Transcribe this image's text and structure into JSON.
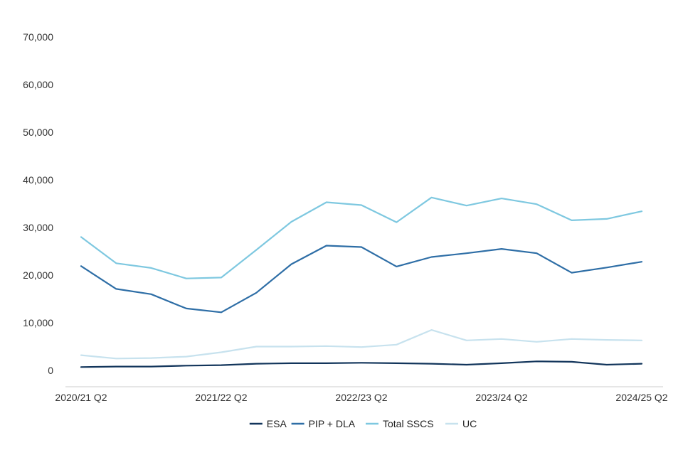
{
  "chart_data": {
    "type": "line",
    "title": "",
    "xlabel": "",
    "ylabel": "",
    "ylim": [
      0,
      70000
    ],
    "yticks": [
      0,
      10000,
      20000,
      30000,
      40000,
      50000,
      60000,
      70000
    ],
    "ytick_labels": [
      "0",
      "10,000",
      "20,000",
      "30,000",
      "40,000",
      "50,000",
      "60,000",
      "70,000"
    ],
    "x": [
      "2020/21 Q2",
      "2020/21 Q3",
      "2020/21 Q4",
      "2021/22 Q1",
      "2021/22 Q2",
      "2021/22 Q3",
      "2021/22 Q4",
      "2022/23 Q1",
      "2022/23 Q2",
      "2022/23 Q3",
      "2022/23 Q4",
      "2023/24 Q1",
      "2023/24 Q2",
      "2023/24 Q3",
      "2023/24 Q4",
      "2024/25 Q1",
      "2024/25 Q2"
    ],
    "xtick_labels": [
      "2020/21 Q2",
      "2021/22 Q2",
      "2022/23 Q2",
      "2023/24 Q2",
      "2024/25 Q2"
    ],
    "grid": false,
    "legend_position": "bottom",
    "series": [
      {
        "name": "ESA",
        "color": "#12355b",
        "values": [
          700,
          800,
          800,
          1000,
          1100,
          1400,
          1500,
          1500,
          1600,
          1500,
          1400,
          1200,
          1500,
          1900,
          1800,
          1200,
          1400
        ]
      },
      {
        "name": "PIP + DLA",
        "color": "#2e6ea6",
        "values": [
          21900,
          17100,
          16000,
          13000,
          12200,
          16300,
          22300,
          26200,
          25900,
          21800,
          23800,
          24600,
          25500,
          24600,
          20500,
          21600,
          22800
        ]
      },
      {
        "name": "Total SSCS",
        "color": "#7ec8e0",
        "values": [
          28000,
          22500,
          21500,
          19300,
          19500,
          25300,
          31200,
          35300,
          34700,
          31100,
          36300,
          34600,
          36100,
          34900,
          31500,
          31800,
          33400
        ]
      },
      {
        "name": "UC",
        "color": "#c7e2ee",
        "values": [
          3200,
          2500,
          2600,
          2900,
          3800,
          5000,
          5000,
          5100,
          4900,
          5400,
          8500,
          6300,
          6600,
          6000,
          6600,
          6400,
          6300
        ]
      }
    ]
  }
}
